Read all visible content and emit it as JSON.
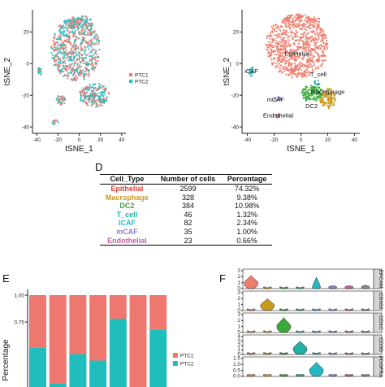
{
  "colors": {
    "ptc1": "#ee776f",
    "ptc2": "#1fbdbc",
    "epithelial": "#ef7b6c",
    "macrophage": "#c99a1e",
    "dc2": "#3aa937",
    "t_cell": "#21b0a3",
    "icaf": "#27b7c2",
    "mcaf": "#8d7fc8",
    "endothelial": "#c45ea2"
  },
  "panels": {
    "d_letter": "D",
    "e_letter": "E",
    "f_letter": "F"
  },
  "chart_data": [
    {
      "type": "scatter",
      "panel": "tsne-sample",
      "xlabel": "tSNE_1",
      "ylabel": "tSNE_2",
      "xticks": [
        -40,
        -20,
        0,
        20,
        40
      ],
      "yticks": [
        -40,
        -20,
        0,
        20
      ],
      "xlim": [
        -44,
        44
      ],
      "ylim": [
        -44,
        34
      ],
      "legend": [
        "PTC1",
        "PTC2"
      ],
      "legend_position": "right",
      "clusters": [
        {
          "name": "main",
          "cx": -3,
          "cy": 9,
          "rx": 23,
          "ry": 20,
          "n": 700,
          "mix": 0.5
        },
        {
          "name": "upper-arc",
          "cx": 0,
          "cy": 26,
          "rx": 14,
          "ry": 4,
          "n": 90,
          "mix": 0.5
        },
        {
          "name": "left-small",
          "cx": -37,
          "cy": -5,
          "rx": 2,
          "ry": 2.5,
          "n": 18,
          "mix": 0.2
        },
        {
          "name": "left-mid",
          "cx": -17,
          "cy": -23,
          "rx": 4,
          "ry": 3,
          "n": 40,
          "mix": 0.5
        },
        {
          "name": "bottom-left",
          "cx": -22,
          "cy": -37,
          "rx": 3,
          "ry": 1.5,
          "n": 14,
          "mix": 0.5
        },
        {
          "name": "lower-right",
          "cx": 14,
          "cy": -20,
          "rx": 14,
          "ry": 7,
          "n": 220,
          "mix": 0.45
        }
      ]
    },
    {
      "type": "scatter",
      "panel": "tsne-celltype",
      "xlabel": "tSNE_1",
      "ylabel": "tSNE_2",
      "xticks": [
        -40,
        -20,
        0,
        20,
        40
      ],
      "yticks": [
        -40,
        -20,
        0,
        20
      ],
      "xlim": [
        -44,
        44
      ],
      "ylim": [
        -44,
        34
      ],
      "cluster_labels": [
        {
          "label": "Epithelial",
          "x": -3,
          "y": 5
        },
        {
          "label": "T_cell",
          "x": 13,
          "y": -8
        },
        {
          "label": "iCAF",
          "x": -37,
          "y": -6
        },
        {
          "label": "Macrophage",
          "x": 20,
          "y": -19
        },
        {
          "label": "mCAF",
          "x": -19,
          "y": -24
        },
        {
          "label": "DC2",
          "x": 8,
          "y": -28
        },
        {
          "label": "Endothelial",
          "x": -17,
          "y": -34
        }
      ],
      "clusters": [
        {
          "name": "epithelial",
          "cx": -3,
          "cy": 11,
          "rx": 23,
          "ry": 20,
          "n": 800
        },
        {
          "name": "epithelial-arc",
          "cx": 0,
          "cy": 27,
          "rx": 14,
          "ry": 4,
          "n": 80
        },
        {
          "name": "icaf",
          "cx": -37,
          "cy": -5,
          "rx": 2,
          "ry": 2.5,
          "n": 22
        },
        {
          "name": "t_cell",
          "cx": 12,
          "cy": -12,
          "rx": 2,
          "ry": 1.5,
          "n": 12
        },
        {
          "name": "mcaf",
          "cx": -17,
          "cy": -22,
          "rx": 2,
          "ry": 1.5,
          "n": 14
        },
        {
          "name": "endothelial",
          "cx": -17,
          "cy": -33,
          "rx": 2,
          "ry": 1,
          "n": 8
        },
        {
          "name": "dc2",
          "cx": 8,
          "cy": -19,
          "rx": 8,
          "ry": 5,
          "n": 130
        },
        {
          "name": "macrophage",
          "cx": 20,
          "cy": -22,
          "rx": 6,
          "ry": 6,
          "n": 120
        }
      ]
    },
    {
      "type": "table",
      "panel": "cell-counts",
      "columns": [
        "Cell_Type",
        "Number of cells",
        "Percentage"
      ],
      "rows": [
        {
          "cell_type": "Epithelial",
          "count": "2599",
          "pct": "74.32%",
          "color": "#e0403f"
        },
        {
          "cell_type": "Macrophage",
          "count": "328",
          "pct": "9.38%",
          "color": "#c99a1e"
        },
        {
          "cell_type": "DC2",
          "count": "384",
          "pct": "10.98%",
          "color": "#3aa937"
        },
        {
          "cell_type": "T_cell",
          "count": "46",
          "pct": "1.32%",
          "color": "#21b0a3"
        },
        {
          "cell_type": "iCAF",
          "count": "82",
          "pct": "2.34%",
          "color": "#27b7c2"
        },
        {
          "cell_type": "mCAF",
          "count": "35",
          "pct": "1.00%",
          "color": "#8d7fc8"
        },
        {
          "cell_type": "Endothelial",
          "count": "23",
          "pct": "0.66%",
          "color": "#c45ea2"
        }
      ]
    },
    {
      "type": "bar",
      "stacked": true,
      "panel": "sample-percentage",
      "ylabel": "Percentage",
      "ylim": [
        0,
        1
      ],
      "yticks_shown": [
        "0.75",
        "1.00"
      ],
      "legend": [
        "PTC1",
        "PTC2"
      ],
      "legend_position": "right",
      "series": [
        {
          "name": "PTC2",
          "values": [
            0.51,
            0.18,
            0.45,
            0.39,
            0.78,
            0.1,
            0.68
          ]
        },
        {
          "name": "PTC1",
          "values": [
            0.49,
            0.82,
            0.55,
            0.61,
            0.22,
            0.9,
            0.32
          ]
        }
      ]
    },
    {
      "type": "violin",
      "panel": "marker-violins",
      "genes": [
        {
          "name": "EPCAM",
          "ylim": [
            0,
            3
          ],
          "yticks": [
            "3",
            "2",
            "1",
            "0"
          ],
          "peak_group": 0,
          "levels": [
            2.2,
            0.1,
            0.1,
            0.1,
            1.9,
            0.5,
            0.5,
            0.6
          ]
        },
        {
          "name": "CD163",
          "ylim": [
            0,
            3
          ],
          "yticks": [
            "3",
            "2",
            "1",
            "0"
          ],
          "peak_group": 1,
          "levels": [
            0.05,
            2.0,
            0.05,
            0.05,
            0.05,
            0.05,
            0.05,
            0.05
          ]
        },
        {
          "name": "CD1C",
          "ylim": [
            0,
            3
          ],
          "yticks": [
            "3",
            "2",
            "1",
            "0"
          ],
          "peak_group": 2,
          "levels": [
            0.05,
            0.1,
            2.5,
            0.05,
            0.05,
            0.05,
            0.05,
            0.05
          ]
        },
        {
          "name": "CD3D",
          "ylim": [
            0,
            4
          ],
          "yticks": [
            "4",
            "3",
            "2",
            "1",
            "0"
          ],
          "peak_group": 3,
          "levels": [
            0.3,
            0.3,
            0.3,
            3.0,
            0.3,
            0.2,
            0.2,
            0.2
          ]
        },
        {
          "name": "PDGFRA",
          "ylim": [
            0,
            1.5
          ],
          "yticks": [
            "1.5",
            "1.0",
            "0.5",
            "0.0"
          ],
          "peak_group": 4,
          "levels": [
            0.05,
            0.05,
            0.05,
            0.05,
            1.2,
            0.05,
            0.05,
            0.05
          ]
        }
      ],
      "group_colors": [
        "#ef7b6c",
        "#c99a1e",
        "#3aa937",
        "#21b0a3",
        "#27b7c2",
        "#8d7fc8",
        "#c45ea2",
        "#888888"
      ]
    }
  ]
}
